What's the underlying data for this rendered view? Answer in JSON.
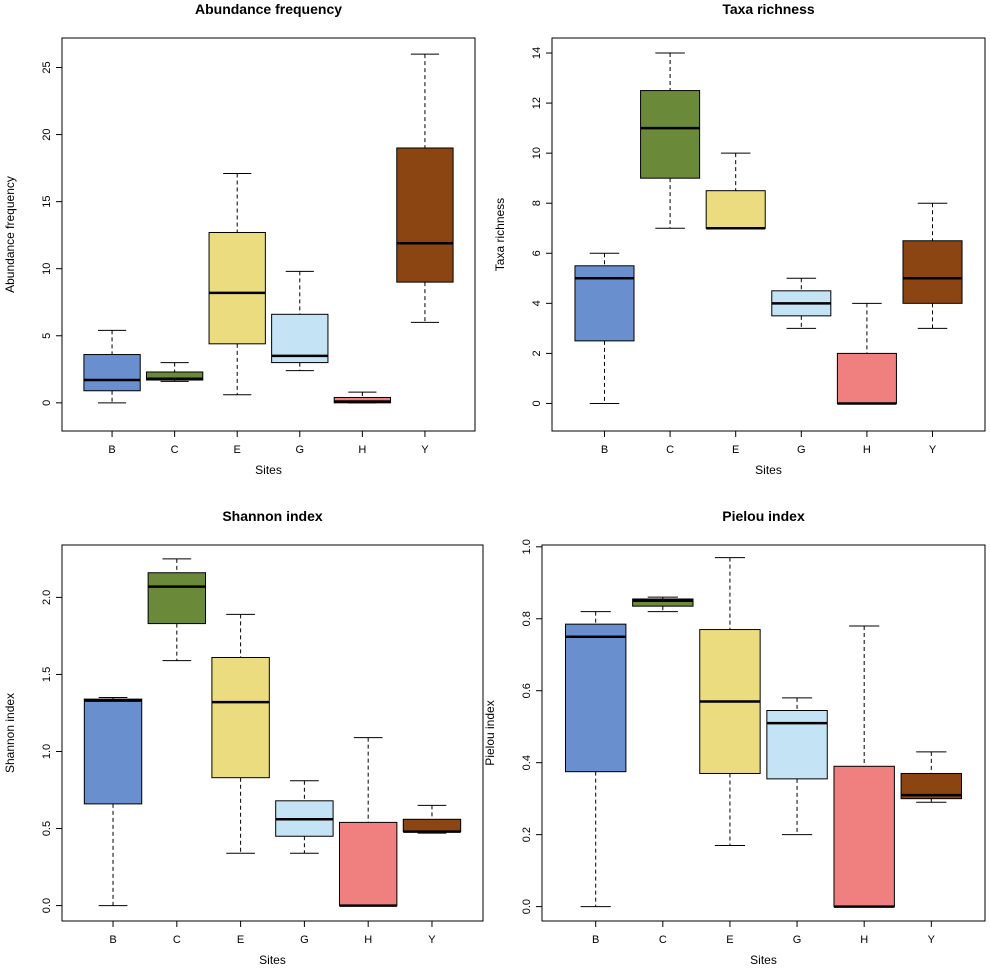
{
  "chart_data": [
    {
      "type": "box",
      "title": "Abundance frequency",
      "xlabel": "Sites",
      "ylabel": "Abundance frequency",
      "categories": [
        "B",
        "C",
        "E",
        "G",
        "H",
        "Y"
      ],
      "colors": [
        "#6a8fcf",
        "#6a8a3a",
        "#ecdc80",
        "#c4e4f6",
        "#f07f7f",
        "#8b4513"
      ],
      "yticks": [
        0,
        5,
        10,
        15,
        20,
        25
      ],
      "ylim": [
        -2.1,
        27.2
      ],
      "stats": [
        {
          "min": 0,
          "q1": 0.9,
          "median": 1.7,
          "q3": 3.6,
          "max": 5.4
        },
        {
          "min": 1.6,
          "q1": 1.7,
          "median": 1.8,
          "q3": 2.3,
          "max": 3.0
        },
        {
          "min": 0.6,
          "q1": 4.4,
          "median": 8.2,
          "q3": 12.7,
          "max": 17.1
        },
        {
          "min": 2.4,
          "q1": 3.0,
          "median": 3.5,
          "q3": 6.6,
          "max": 9.8
        },
        {
          "min": 0,
          "q1": 0,
          "median": 0.1,
          "q3": 0.4,
          "max": 0.8
        },
        {
          "min": 6.0,
          "q1": 9.0,
          "median": 11.9,
          "q3": 19.0,
          "max": 26.0
        }
      ]
    },
    {
      "type": "box",
      "title": "Taxa richness",
      "xlabel": "Sites",
      "ylabel": "Taxa richness",
      "categories": [
        "B",
        "C",
        "E",
        "G",
        "H",
        "Y"
      ],
      "colors": [
        "#6a8fcf",
        "#6a8a3a",
        "#ecdc80",
        "#c4e4f6",
        "#f07f7f",
        "#8b4513"
      ],
      "yticks": [
        0,
        2,
        4,
        6,
        8,
        10,
        12,
        14
      ],
      "ylim": [
        -1.1,
        14.6
      ],
      "stats": [
        {
          "min": 0,
          "q1": 2.5,
          "median": 5,
          "q3": 5.5,
          "max": 6
        },
        {
          "min": 7,
          "q1": 9,
          "median": 11,
          "q3": 12.5,
          "max": 14
        },
        {
          "min": 7,
          "q1": 7,
          "median": 7,
          "q3": 8.5,
          "max": 10
        },
        {
          "min": 3,
          "q1": 3.5,
          "median": 4,
          "q3": 4.5,
          "max": 5
        },
        {
          "min": 0,
          "q1": 0,
          "median": 0,
          "q3": 2,
          "max": 4
        },
        {
          "min": 3,
          "q1": 4,
          "median": 5,
          "q3": 6.5,
          "max": 8
        }
      ]
    },
    {
      "type": "box",
      "title": "Shannon index",
      "xlabel": "Sites",
      "ylabel": "Shannon index",
      "categories": [
        "B",
        "C",
        "E",
        "G",
        "H",
        "Y"
      ],
      "colors": [
        "#6a8fcf",
        "#6a8a3a",
        "#ecdc80",
        "#c4e4f6",
        "#f07f7f",
        "#8b4513"
      ],
      "yticks": [
        "0.0",
        "0.5",
        "1.0",
        "1.5",
        "2.0"
      ],
      "ylim": [
        -0.1,
        2.34
      ],
      "stats": [
        {
          "min": 0,
          "q1": 0.66,
          "median": 1.33,
          "q3": 1.34,
          "max": 1.35
        },
        {
          "min": 1.59,
          "q1": 1.83,
          "median": 2.07,
          "q3": 2.16,
          "max": 2.25
        },
        {
          "min": 0.34,
          "q1": 0.83,
          "median": 1.32,
          "q3": 1.61,
          "max": 1.89
        },
        {
          "min": 0.34,
          "q1": 0.45,
          "median": 0.56,
          "q3": 0.68,
          "max": 0.81
        },
        {
          "min": 0,
          "q1": 0,
          "median": 0,
          "q3": 0.54,
          "max": 1.09
        },
        {
          "min": 0.47,
          "q1": 0.48,
          "median": 0.48,
          "q3": 0.56,
          "max": 0.65
        }
      ]
    },
    {
      "type": "box",
      "title": "Pielou index",
      "xlabel": "Sites",
      "ylabel": "Pielou index",
      "categories": [
        "B",
        "C",
        "E",
        "G",
        "H",
        "Y"
      ],
      "colors": [
        "#6a8fcf",
        "#6a8a3a",
        "#ecdc80",
        "#c4e4f6",
        "#f07f7f",
        "#8b4513"
      ],
      "yticks": [
        "0.0",
        "0.2",
        "0.4",
        "0.6",
        "0.8",
        "1.0"
      ],
      "ylim": [
        -0.04,
        1.005
      ],
      "stats": [
        {
          "min": 0,
          "q1": 0.375,
          "median": 0.75,
          "q3": 0.785,
          "max": 0.82
        },
        {
          "min": 0.82,
          "q1": 0.835,
          "median": 0.85,
          "q3": 0.855,
          "max": 0.86
        },
        {
          "min": 0.17,
          "q1": 0.37,
          "median": 0.57,
          "q3": 0.77,
          "max": 0.97
        },
        {
          "min": 0.2,
          "q1": 0.355,
          "median": 0.51,
          "q3": 0.545,
          "max": 0.58
        },
        {
          "min": 0,
          "q1": 0,
          "median": 0,
          "q3": 0.39,
          "max": 0.78
        },
        {
          "min": 0.29,
          "q1": 0.3,
          "median": 0.31,
          "q3": 0.37,
          "max": 0.43
        }
      ]
    }
  ]
}
